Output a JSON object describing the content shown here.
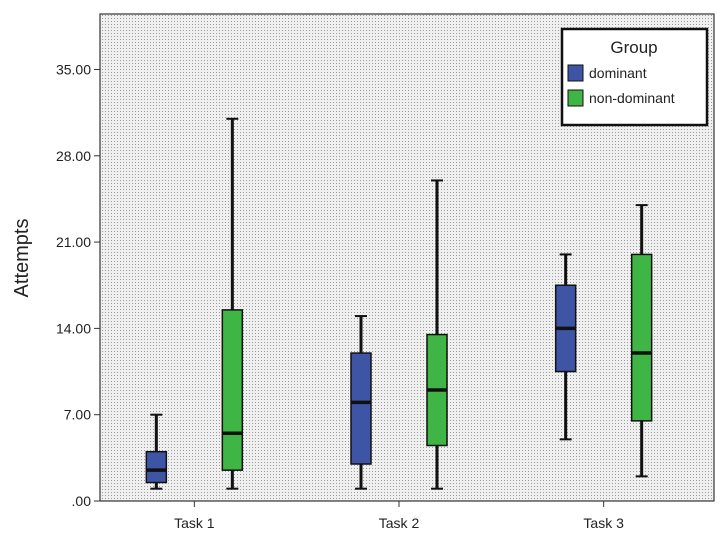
{
  "chart_data": {
    "type": "boxplot",
    "ylabel": "Attempts",
    "xlabel": "",
    "ylim": [
      0,
      39.5
    ],
    "y_ticks": [
      0,
      7,
      14,
      21,
      28,
      35
    ],
    "y_tick_labels": [
      ".00",
      "7.00",
      "14.00",
      "21.00",
      "28.00",
      "35.00"
    ],
    "categories": [
      "Task 1",
      "Task 2",
      "Task 3"
    ],
    "grid": false,
    "legend": {
      "title": "Group",
      "position": "top-right"
    },
    "series": [
      {
        "name": "dominant",
        "color": "#3e55a6",
        "boxes": [
          {
            "min": 1,
            "q1": 1.5,
            "median": 2.5,
            "q3": 4,
            "max": 7
          },
          {
            "min": 1,
            "q1": 3,
            "median": 8,
            "q3": 12,
            "max": 15
          },
          {
            "min": 5,
            "q1": 10.5,
            "median": 14,
            "q3": 17.5,
            "max": 20
          }
        ]
      },
      {
        "name": "non-dominant",
        "color": "#3eb545",
        "boxes": [
          {
            "min": 1,
            "q1": 2.5,
            "median": 5.5,
            "q3": 15.5,
            "max": 31
          },
          {
            "min": 1,
            "q1": 4.5,
            "median": 9,
            "q3": 13.5,
            "max": 26
          },
          {
            "min": 2,
            "q1": 6.5,
            "median": 12,
            "q3": 20,
            "max": 24
          }
        ]
      }
    ]
  }
}
